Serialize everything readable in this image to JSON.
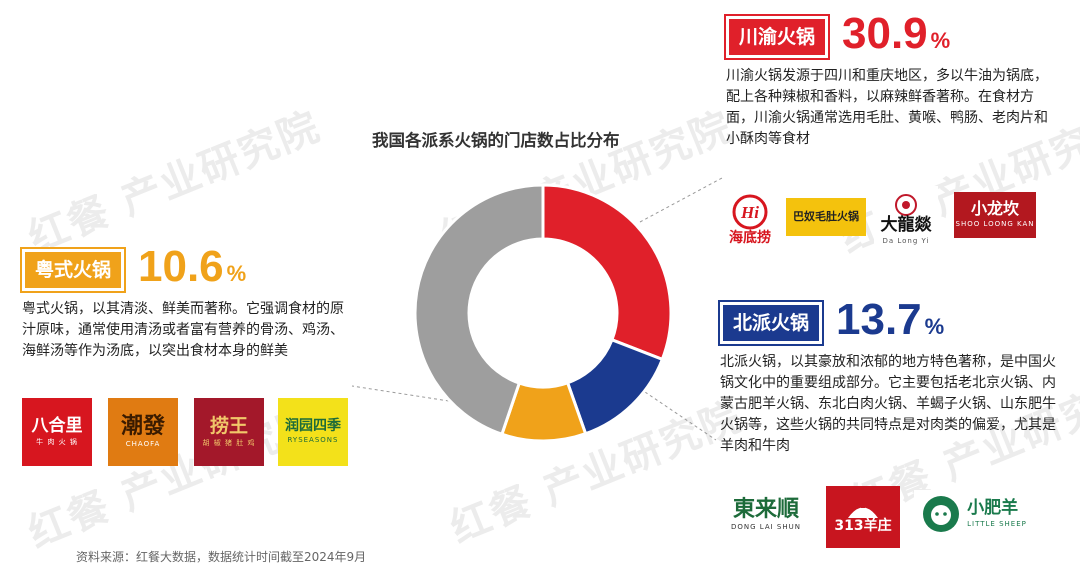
{
  "watermark_text": "红餐 产业研究院",
  "chart_data": {
    "type": "pie",
    "title": "我国各派系火锅的门店数占比分布",
    "slices": [
      {
        "name": "川渝火锅",
        "value": 30.9,
        "color": "#e0202a"
      },
      {
        "name": "北派火锅",
        "value": 13.7,
        "color": "#1b3a8f"
      },
      {
        "name": "粤式火锅",
        "value": 10.6,
        "color": "#f0a21a"
      },
      {
        "value": 44.8,
        "color": "#9e9e9e"
      }
    ]
  },
  "categories": {
    "chuanyu": {
      "label": "川渝火锅",
      "value": "30.9",
      "unit": "%",
      "description": "川渝火锅发源于四川和重庆地区，多以牛油为锅底，配上各种辣椒和香料，以麻辣鲜香著称。在食材方面，川渝火锅通常选用毛肚、黄喉、鸭肠、老肉片和小酥肉等食材",
      "brands": [
        {
          "icon": "haidilao-logo",
          "text": "海底捞",
          "color": "#d7161f"
        },
        {
          "icon": "banu-logo",
          "text": "巴奴毛肚火锅",
          "color": "#f4c20d"
        },
        {
          "icon": "dalongyi-logo",
          "text": "大龍燚",
          "sub": "Da Long Yi",
          "color": "#c0182a"
        },
        {
          "icon": "xiaolongkan-logo",
          "text": "小龙坎",
          "sub": "SHOO LOONG KAN",
          "color": "#b3181f"
        }
      ]
    },
    "yueshi": {
      "label": "粤式火锅",
      "value": "10.6",
      "unit": "%",
      "description": "粤式火锅，以其清淡、鲜美而著称。它强调食材的原汁原味，通常使用清汤或者富有营养的骨汤、鸡汤、海鲜汤等作为汤底，以突出食材本身的鲜美",
      "brands": [
        {
          "icon": "bahelli-logo",
          "text": "八合里",
          "sub": "牛 肉 火 锅",
          "color": "#d7161f"
        },
        {
          "icon": "chaofa-logo",
          "text": "潮發",
          "sub": "CHAOFA",
          "color": "#e07b12"
        },
        {
          "icon": "laowang-logo",
          "text": "捞王",
          "sub": "胡 椒 猪 肚 鸡",
          "color": "#a3182a"
        },
        {
          "icon": "ryseasons-logo",
          "text": "润园四季",
          "sub": "RYSEASONS",
          "color": "#f3e11a"
        }
      ]
    },
    "beipai": {
      "label": "北派火锅",
      "value": "13.7",
      "unit": "%",
      "description": "北派火锅，以其豪放和浓郁的地方特色著称，是中国火锅文化中的重要组成部分。它主要包括老北京火锅、内蒙古肥羊火锅、东北白肉火锅、羊蝎子火锅、山东肥牛火锅等，这些火锅的共同特点是对肉类的偏爱，尤其是羊肉和牛肉",
      "brands": [
        {
          "icon": "donglaishun-logo",
          "text": "東来順",
          "sub": "DONG LAI SHUN",
          "color": "#1d6b3a"
        },
        {
          "icon": "313yangzhuang-logo",
          "text": "313羊庄",
          "color": "#c8151f"
        },
        {
          "icon": "xiaofeiyang-logo",
          "text": "小肥羊",
          "sub": "LITTLE SHEEP",
          "color": "#1a7a4c"
        }
      ]
    }
  },
  "source": "资料来源：红餐大数据，数据统计时间截至2024年9月"
}
